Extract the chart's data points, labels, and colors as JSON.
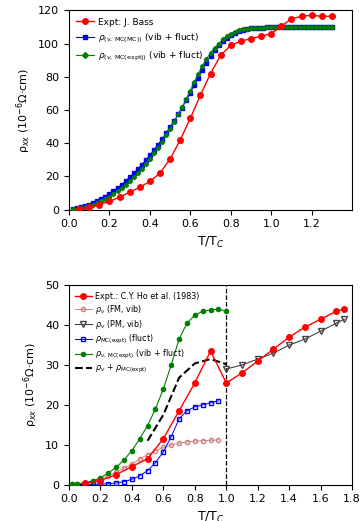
{
  "top": {
    "xlim": [
      0,
      1.4
    ],
    "ylim": [
      0,
      120
    ],
    "xticks": [
      0,
      0.2,
      0.4,
      0.6,
      0.8,
      1.0,
      1.2
    ],
    "yticks": [
      0,
      20,
      40,
      60,
      80,
      100,
      120
    ],
    "xlabel": "T/T$_C$",
    "ylabel": "ρ$_{xx}$ (10$^{-6}$Ω·cm)",
    "expt_bass_x": [
      0.05,
      0.1,
      0.15,
      0.2,
      0.25,
      0.3,
      0.35,
      0.4,
      0.45,
      0.5,
      0.55,
      0.6,
      0.65,
      0.7,
      0.75,
      0.8,
      0.85,
      0.9,
      0.95,
      1.0,
      1.05,
      1.1,
      1.15,
      1.2,
      1.25,
      1.3
    ],
    "expt_bass_y": [
      0.3,
      1.5,
      3.0,
      5.0,
      7.5,
      10.5,
      13.5,
      17.0,
      22.0,
      30.5,
      42.0,
      55.0,
      69.0,
      82.0,
      93.0,
      99.0,
      101.5,
      103.0,
      104.5,
      106.0,
      110.5,
      115.0,
      116.5,
      117.0,
      116.5,
      116.5
    ],
    "rho_mc_mc_x": [
      0.02,
      0.04,
      0.06,
      0.08,
      0.1,
      0.12,
      0.14,
      0.16,
      0.18,
      0.2,
      0.22,
      0.24,
      0.26,
      0.28,
      0.3,
      0.32,
      0.34,
      0.36,
      0.38,
      0.4,
      0.42,
      0.44,
      0.46,
      0.48,
      0.5,
      0.52,
      0.54,
      0.56,
      0.58,
      0.6,
      0.62,
      0.64,
      0.66,
      0.68,
      0.7,
      0.72,
      0.74,
      0.76,
      0.78,
      0.8,
      0.82,
      0.84,
      0.86,
      0.88,
      0.9,
      0.92,
      0.94,
      0.96,
      0.98,
      1.0,
      1.02,
      1.04,
      1.06,
      1.08,
      1.1,
      1.12,
      1.14,
      1.16,
      1.18,
      1.2,
      1.22,
      1.24,
      1.26,
      1.28,
      1.3
    ],
    "rho_mc_mc_y": [
      0.3,
      0.7,
      1.3,
      2.0,
      2.9,
      3.9,
      5.1,
      6.4,
      7.9,
      9.5,
      11.2,
      13.1,
      15.1,
      17.2,
      19.5,
      21.9,
      24.4,
      27.1,
      29.9,
      32.8,
      35.9,
      39.1,
      42.5,
      46.0,
      49.7,
      53.5,
      57.4,
      61.5,
      65.8,
      70.2,
      74.8,
      79.5,
      84.2,
      88.5,
      92.5,
      96.0,
      99.0,
      101.5,
      103.5,
      105.0,
      106.5,
      107.5,
      108.2,
      108.8,
      109.2,
      109.5,
      109.6,
      109.7,
      109.75,
      109.8,
      109.8,
      109.8,
      109.8,
      109.8,
      109.8,
      109.8,
      109.8,
      109.8,
      109.8,
      109.8,
      109.8,
      109.8,
      109.8,
      109.8,
      109.8
    ],
    "rho_mc_expt_x": [
      0.02,
      0.04,
      0.06,
      0.08,
      0.1,
      0.12,
      0.14,
      0.16,
      0.18,
      0.2,
      0.22,
      0.24,
      0.26,
      0.28,
      0.3,
      0.32,
      0.34,
      0.36,
      0.38,
      0.4,
      0.42,
      0.44,
      0.46,
      0.48,
      0.5,
      0.52,
      0.54,
      0.56,
      0.58,
      0.6,
      0.62,
      0.64,
      0.66,
      0.68,
      0.7,
      0.72,
      0.74,
      0.76,
      0.78,
      0.8,
      0.82,
      0.84,
      0.86,
      0.88,
      0.9,
      0.92,
      0.94,
      0.96,
      0.98,
      1.0,
      1.02,
      1.04,
      1.06,
      1.08,
      1.1,
      1.12,
      1.14,
      1.16,
      1.18,
      1.2,
      1.22,
      1.24,
      1.26,
      1.28,
      1.3
    ],
    "rho_mc_expt_y": [
      0.2,
      0.5,
      0.95,
      1.5,
      2.2,
      3.0,
      4.0,
      5.1,
      6.4,
      7.8,
      9.4,
      11.1,
      13.0,
      15.0,
      17.2,
      19.5,
      22.0,
      24.7,
      27.6,
      30.7,
      34.0,
      37.4,
      41.0,
      44.8,
      48.8,
      53.0,
      57.4,
      61.9,
      66.7,
      71.7,
      76.8,
      81.8,
      86.5,
      90.7,
      94.5,
      97.5,
      100.0,
      102.5,
      104.5,
      106.0,
      107.2,
      108.0,
      108.6,
      109.0,
      109.3,
      109.5,
      109.6,
      109.7,
      109.75,
      109.8,
      109.8,
      109.8,
      109.8,
      109.8,
      109.8,
      109.8,
      109.8,
      109.8,
      109.8,
      109.8,
      109.8,
      109.8,
      109.8,
      109.8,
      109.8
    ]
  },
  "bottom": {
    "xlim": [
      0,
      1.8
    ],
    "ylim": [
      0,
      50
    ],
    "xticks": [
      0,
      0.2,
      0.4,
      0.6,
      0.8,
      1.0,
      1.2,
      1.4,
      1.6,
      1.8
    ],
    "yticks": [
      0,
      10,
      20,
      30,
      40,
      50
    ],
    "xlabel": "T/T$_C$",
    "ylabel": "ρ$_{xx}$ (10$^{-6}$Ω·cm)",
    "tc_line_x": 1.0,
    "expt_ho_x": [
      0.1,
      0.2,
      0.3,
      0.4,
      0.5,
      0.6,
      0.7,
      0.8,
      0.9,
      1.0,
      1.1,
      1.2,
      1.3,
      1.4,
      1.5,
      1.6,
      1.7,
      1.75
    ],
    "expt_ho_y": [
      0.3,
      1.0,
      2.5,
      4.5,
      6.5,
      11.5,
      18.5,
      25.5,
      33.5,
      25.5,
      28.0,
      31.0,
      34.0,
      37.0,
      39.5,
      41.5,
      43.5,
      44.0
    ],
    "rho_v_FM_x": [
      0.02,
      0.05,
      0.1,
      0.15,
      0.2,
      0.25,
      0.3,
      0.35,
      0.4,
      0.45,
      0.5,
      0.55,
      0.6,
      0.65,
      0.7,
      0.75,
      0.8,
      0.85,
      0.9,
      0.95
    ],
    "rho_v_FM_y": [
      0.05,
      0.15,
      0.4,
      0.8,
      1.4,
      2.2,
      3.1,
      4.1,
      5.2,
      6.4,
      7.5,
      8.5,
      9.3,
      9.9,
      10.4,
      10.7,
      10.9,
      11.0,
      11.1,
      11.2
    ],
    "rho_v_PM_x": [
      1.0,
      1.1,
      1.2,
      1.3,
      1.4,
      1.5,
      1.6,
      1.7,
      1.75
    ],
    "rho_v_PM_y": [
      29.0,
      30.0,
      31.5,
      33.0,
      35.0,
      36.5,
      38.5,
      40.5,
      41.5
    ],
    "rho_MC_expt_fluct_x": [
      0.02,
      0.05,
      0.1,
      0.15,
      0.2,
      0.25,
      0.3,
      0.35,
      0.4,
      0.45,
      0.5,
      0.55,
      0.6,
      0.65,
      0.7,
      0.75,
      0.8,
      0.85,
      0.9,
      0.95
    ],
    "rho_MC_expt_fluct_y": [
      0.0,
      0.0,
      0.02,
      0.04,
      0.1,
      0.2,
      0.4,
      0.7,
      1.3,
      2.2,
      3.5,
      5.5,
      8.2,
      12.0,
      16.5,
      18.5,
      19.5,
      20.0,
      20.5,
      21.0
    ],
    "rho_v_MC_expt_x": [
      0.02,
      0.05,
      0.1,
      0.15,
      0.2,
      0.25,
      0.3,
      0.35,
      0.4,
      0.45,
      0.5,
      0.55,
      0.6,
      0.65,
      0.7,
      0.75,
      0.8,
      0.85,
      0.9,
      0.95,
      1.0
    ],
    "rho_v_MC_expt_y": [
      0.05,
      0.15,
      0.42,
      0.86,
      1.7,
      2.9,
      4.3,
      6.2,
      8.5,
      11.5,
      14.8,
      19.0,
      24.0,
      30.0,
      36.5,
      40.5,
      42.5,
      43.5,
      43.8,
      44.0,
      43.5
    ],
    "rho_v_plus_MC_x": [
      0.5,
      0.6,
      0.7,
      0.8,
      0.9,
      1.0
    ],
    "rho_v_plus_MC_y": [
      11.0,
      17.5,
      26.8,
      30.4,
      31.5,
      30.2
    ]
  }
}
